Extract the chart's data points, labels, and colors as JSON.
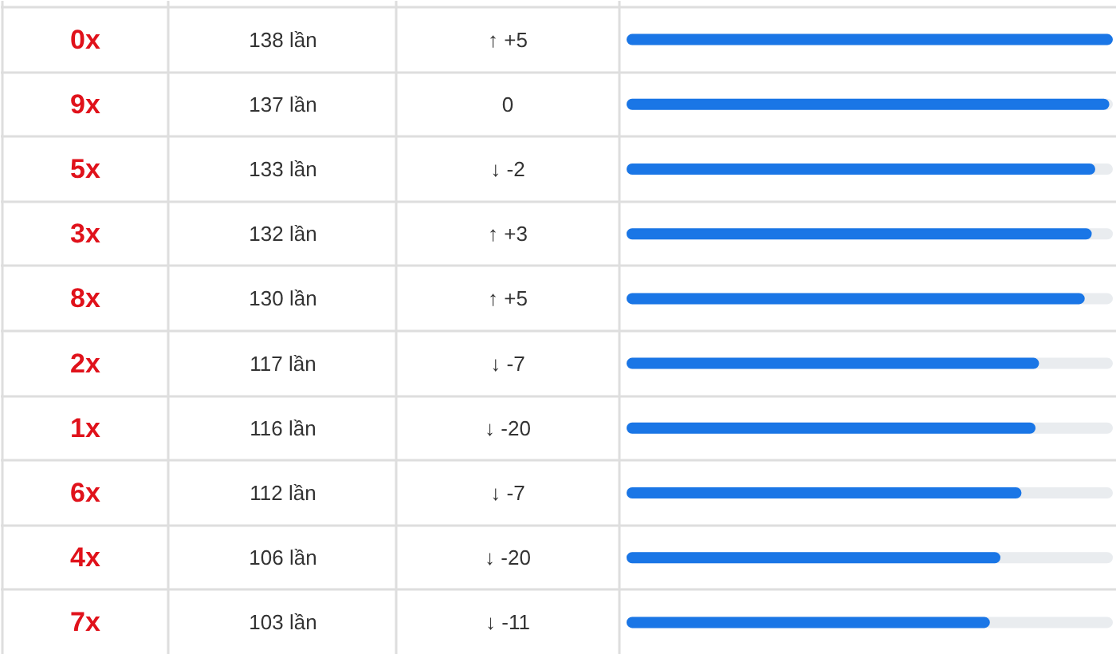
{
  "chart_data": {
    "type": "bar",
    "orientation": "horizontal",
    "categories": [
      "0x",
      "9x",
      "5x",
      "3x",
      "8x",
      "2x",
      "1x",
      "6x",
      "4x",
      "7x"
    ],
    "values": [
      138,
      137,
      133,
      132,
      130,
      117,
      116,
      112,
      106,
      103
    ],
    "value_labels": [
      "138 lần",
      "137 lần",
      "133 lần",
      "132 lần",
      "130 lần",
      "117 lần",
      "116 lần",
      "112 lần",
      "106 lần",
      "103 lần"
    ],
    "color": "#1a76e6",
    "xlim": [
      0,
      138
    ],
    "grid": "y",
    "tick_labels": "y",
    "annotations": [
      "↑ +5",
      "0",
      "↓ -2",
      "↑ +3",
      "↑ +5",
      "↓ -7",
      "↓ -20",
      "↓ -7",
      "↓ -20",
      "↓ -11"
    ]
  }
}
